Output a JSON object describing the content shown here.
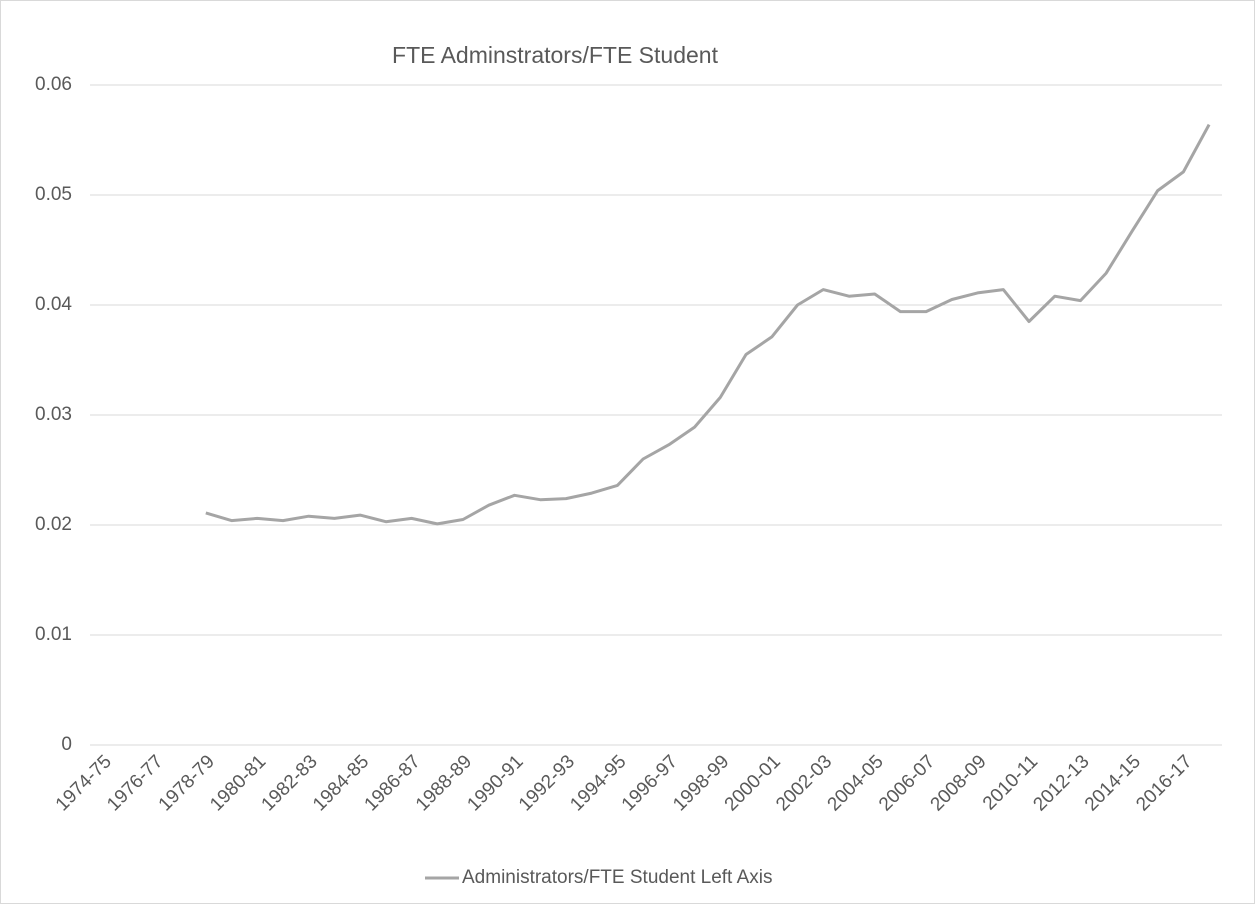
{
  "chart_data": {
    "type": "line",
    "title": "FTE Adminstrators/FTE Student",
    "categories": [
      "1974-75",
      null,
      "1976-77",
      null,
      "1978-79",
      null,
      "1980-81",
      null,
      "1982-83",
      null,
      "1984-85",
      null,
      "1986-87",
      null,
      "1988-89",
      null,
      "1990-91",
      null,
      "1992-93",
      null,
      "1994-95",
      null,
      "1996-97",
      null,
      "1998-99",
      null,
      "2000-01",
      null,
      "2002-03",
      null,
      "2004-05",
      null,
      "2006-07",
      null,
      "2008-09",
      null,
      "2010-11",
      null,
      "2012-13",
      null,
      "2014-15",
      null,
      "2016-17",
      null
    ],
    "series": [
      {
        "name": "Administrators/FTE Student Left Axis",
        "color": "#a5a5a5",
        "values": [
          null,
          null,
          null,
          null,
          0.0211,
          0.0204,
          0.0206,
          0.0204,
          0.0208,
          0.0206,
          0.0209,
          0.0203,
          0.0206,
          0.0201,
          0.0205,
          0.0218,
          0.0227,
          0.0223,
          0.0224,
          0.0229,
          0.0236,
          0.026,
          0.0273,
          0.0289,
          0.0316,
          0.0355,
          0.0371,
          0.04,
          0.0414,
          0.0408,
          0.041,
          0.0394,
          0.0394,
          0.0405,
          0.0411,
          0.0414,
          0.0385,
          0.0408,
          0.0404,
          0.0429,
          0.0467,
          0.0504,
          0.0521,
          0.0564
        ]
      }
    ],
    "ylim": [
      0,
      0.06
    ],
    "yticks": [
      0,
      0.01,
      0.02,
      0.03,
      0.04,
      0.05,
      0.06
    ],
    "grid": true,
    "legend": "bottom"
  }
}
